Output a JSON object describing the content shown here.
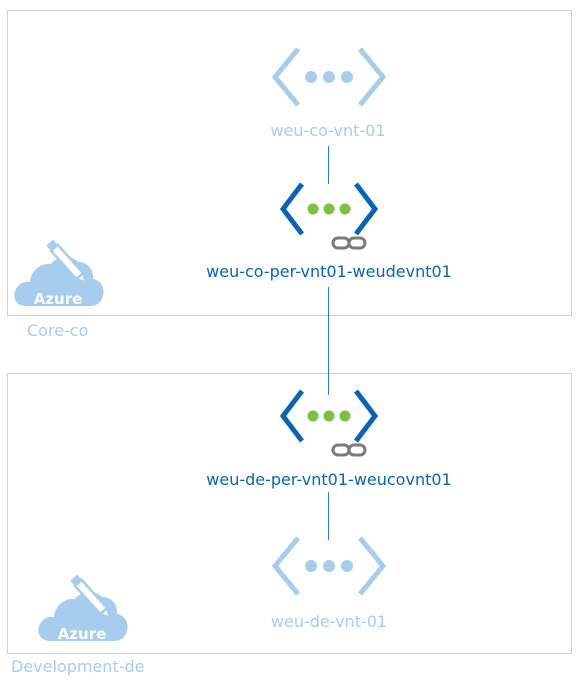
{
  "groups": {
    "core": {
      "label": "Core-co",
      "badge": "Azure"
    },
    "development": {
      "label": "Development-de",
      "badge": "Azure"
    }
  },
  "nodes": {
    "core_vnet": {
      "label": "weu-co-vnt-01"
    },
    "core_peering": {
      "label": "weu-co-per-vnt01-weudevnt01"
    },
    "dev_peering": {
      "label": "weu-de-per-vnt01-weucovnt01"
    },
    "dev_vnet": {
      "label": "weu-de-vnt-01"
    }
  },
  "icons": {
    "vnet": "virtual-network-icon",
    "link": "link-icon",
    "cloud": "azure-cloud-icon"
  },
  "colors": {
    "light_blue": "#a6cdee",
    "dark_blue": "#0a64b5",
    "green_dot": "#7cc242",
    "border": "#d0d0d0"
  }
}
